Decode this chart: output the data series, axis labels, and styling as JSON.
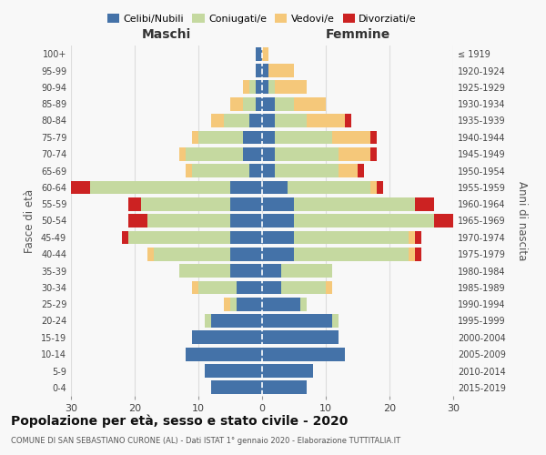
{
  "age_groups": [
    "0-4",
    "5-9",
    "10-14",
    "15-19",
    "20-24",
    "25-29",
    "30-34",
    "35-39",
    "40-44",
    "45-49",
    "50-54",
    "55-59",
    "60-64",
    "65-69",
    "70-74",
    "75-79",
    "80-84",
    "85-89",
    "90-94",
    "95-99",
    "100+"
  ],
  "birth_years": [
    "2015-2019",
    "2010-2014",
    "2005-2009",
    "2000-2004",
    "1995-1999",
    "1990-1994",
    "1985-1989",
    "1980-1984",
    "1975-1979",
    "1970-1974",
    "1965-1969",
    "1960-1964",
    "1955-1959",
    "1950-1954",
    "1945-1949",
    "1940-1944",
    "1935-1939",
    "1930-1934",
    "1925-1929",
    "1920-1924",
    "≤ 1919"
  ],
  "maschi": {
    "celibi": [
      8,
      9,
      12,
      11,
      8,
      4,
      4,
      5,
      5,
      5,
      5,
      5,
      5,
      2,
      3,
      3,
      2,
      1,
      1,
      1,
      1
    ],
    "coniugati": [
      0,
      0,
      0,
      0,
      1,
      1,
      6,
      8,
      12,
      16,
      13,
      14,
      22,
      9,
      9,
      7,
      4,
      2,
      1,
      0,
      0
    ],
    "vedovi": [
      0,
      0,
      0,
      0,
      0,
      1,
      1,
      0,
      1,
      0,
      0,
      0,
      0,
      1,
      1,
      1,
      2,
      2,
      1,
      0,
      0
    ],
    "divorziati": [
      0,
      0,
      0,
      0,
      0,
      0,
      0,
      0,
      0,
      1,
      3,
      2,
      3,
      0,
      0,
      0,
      0,
      0,
      0,
      0,
      0
    ]
  },
  "femmine": {
    "nubili": [
      7,
      8,
      13,
      12,
      11,
      6,
      3,
      3,
      5,
      5,
      5,
      5,
      4,
      2,
      2,
      2,
      2,
      2,
      1,
      1,
      0
    ],
    "coniugate": [
      0,
      0,
      0,
      0,
      1,
      1,
      7,
      8,
      18,
      18,
      22,
      19,
      13,
      10,
      10,
      9,
      5,
      3,
      1,
      0,
      0
    ],
    "vedove": [
      0,
      0,
      0,
      0,
      0,
      0,
      1,
      0,
      1,
      1,
      0,
      0,
      1,
      3,
      5,
      6,
      6,
      5,
      5,
      4,
      1
    ],
    "divorziate": [
      0,
      0,
      0,
      0,
      0,
      0,
      0,
      0,
      1,
      1,
      4,
      3,
      1,
      1,
      1,
      1,
      1,
      0,
      0,
      0,
      0
    ]
  },
  "colors": {
    "celibi": "#4472a8",
    "coniugati": "#c5d9a0",
    "vedovi": "#f5c87a",
    "divorziati": "#cc2222"
  },
  "xlim": 30,
  "title": "Popolazione per età, sesso e stato civile - 2020",
  "subtitle": "COMUNE DI SAN SEBASTIANO CURONE (AL) - Dati ISTAT 1° gennaio 2020 - Elaborazione TUTTITALIA.IT",
  "ylabel_left": "Fasce di età",
  "ylabel_right": "Anni di nascita",
  "xlabel_left": "Maschi",
  "xlabel_right": "Femmine",
  "bg_color": "#f8f8f8",
  "grid_color": "#dddddd"
}
